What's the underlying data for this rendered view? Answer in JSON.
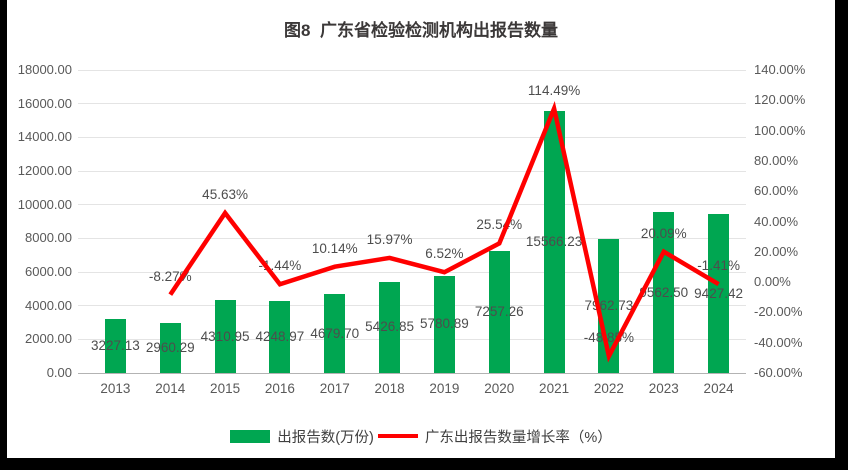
{
  "title": "图8  广东省检验检测机构出报告数量",
  "colors": {
    "bar": "#00a651",
    "line": "#ff0000",
    "grid": "#e4e4e4",
    "axis_line": "#b3b3b3",
    "tick_text": "#595959",
    "label_text": "#4d4d4d",
    "frame_bg": "#000000",
    "canvas_bg": "#ffffff"
  },
  "legend": {
    "items": [
      {
        "label": "出报告数(万份)"
      },
      {
        "label": "广东出报告数量增长率（%）"
      }
    ]
  },
  "chart_data": {
    "type": "combo-bar-line",
    "title": "图8  广东省检验检测机构出报告数量",
    "categories": [
      "2013",
      "2014",
      "2015",
      "2016",
      "2017",
      "2018",
      "2019",
      "2020",
      "2021",
      "2022",
      "2023",
      "2024"
    ],
    "series": [
      {
        "name": "出报告数(万份)",
        "type": "bar",
        "axis": "left",
        "values": [
          3227.13,
          2960.29,
          4310.95,
          4248.97,
          4679.7,
          5426.85,
          5780.89,
          7257.26,
          15566.23,
          7962.73,
          9562.5,
          9427.42
        ]
      },
      {
        "name": "广东出报告数量增长率（%）",
        "type": "line",
        "axis": "right",
        "values": [
          null,
          -8.27,
          45.63,
          -1.44,
          10.14,
          15.97,
          6.52,
          25.54,
          114.49,
          -48.85,
          20.09,
          -1.41
        ]
      }
    ],
    "left_axis": {
      "min": 0,
      "max": 18000,
      "step": 2000,
      "decimals": 2,
      "suffix": ""
    },
    "right_axis": {
      "min": -60,
      "max": 140,
      "step": 20,
      "decimals": 2,
      "suffix": "%"
    },
    "grid": true,
    "legend_position": "bottom",
    "xlabel": "",
    "ylabel_left": "",
    "ylabel_right": ""
  }
}
